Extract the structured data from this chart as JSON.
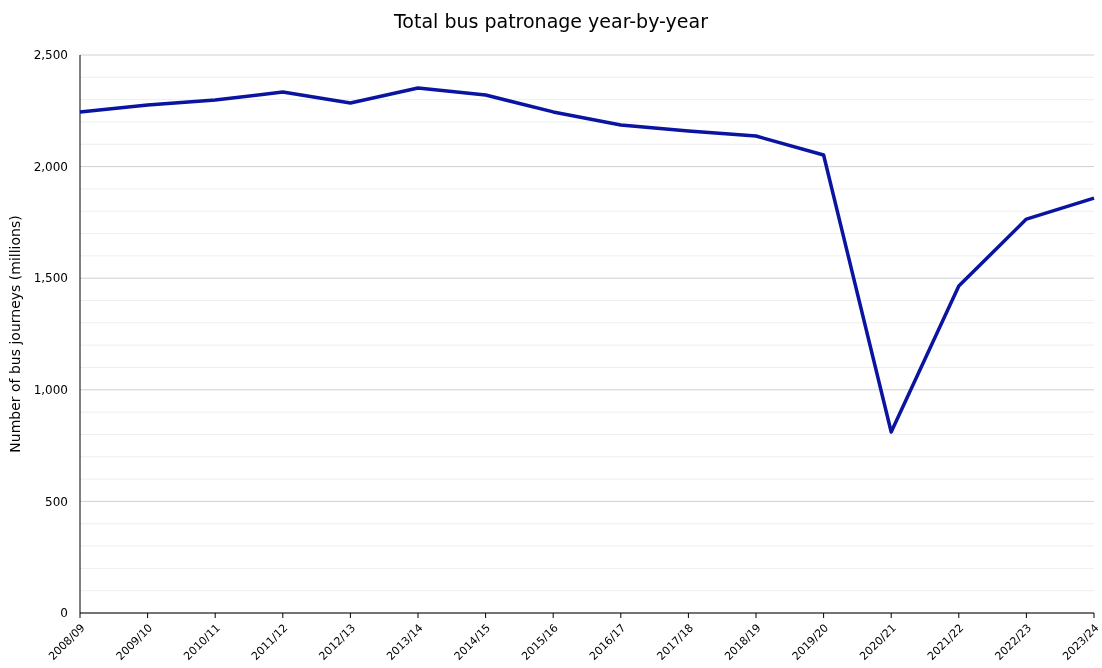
{
  "chart_data": {
    "type": "line",
    "title": "Total bus patronage year-by-year",
    "ylabel": "Number of bus journeys (millions)",
    "categories": [
      "2008/09",
      "2009/10",
      "2010/11",
      "2011/12",
      "2012/13",
      "2013/14",
      "2014/15",
      "2015/16",
      "2016/17",
      "2017/18",
      "2018/19",
      "2019/20",
      "2020/21",
      "2021/22",
      "2022/23",
      "2023/24"
    ],
    "series": [
      {
        "color": "#0a14a0",
        "values": [
          2245,
          2276,
          2298,
          2334,
          2285,
          2352,
          2321,
          2245,
          2186,
          2159,
          2137,
          2052,
          811,
          1465,
          1765,
          1859
        ]
      }
    ],
    "ylim": [
      0,
      2500
    ],
    "yticks": [
      "0",
      {
        "value": 100,
        "label": null
      },
      {
        "value": 200,
        "label": null
      },
      {
        "value": 300,
        "label": null
      },
      {
        "value": 400,
        "label": null
      },
      {
        "value": 500,
        "label": "500"
      },
      {
        "value": 600,
        "label": null
      },
      {
        "value": 700,
        "label": null
      },
      {
        "value": 800,
        "label": null
      },
      {
        "value": 900,
        "label": null
      },
      {
        "value": 1000,
        "label": "1,000"
      },
      {
        "value": 1100,
        "label": null
      },
      {
        "value": 1200,
        "label": null
      },
      {
        "value": 1300,
        "label": null
      },
      {
        "value": 1400,
        "label": null
      },
      {
        "value": 1500,
        "label": "1,500"
      },
      {
        "value": 1600,
        "label": null
      },
      {
        "value": 1700,
        "label": null
      },
      {
        "value": 1800,
        "label": null
      },
      {
        "value": 1900,
        "label": null
      },
      {
        "value": 2000,
        "label": "2,000"
      },
      {
        "value": 2100,
        "label": null
      },
      {
        "value": 2200,
        "label": null
      },
      {
        "value": 2300,
        "label": null
      },
      {
        "value": 2400,
        "label": null
      },
      {
        "value": 2500,
        "label": "2,500"
      }
    ],
    "grid": "y",
    "marker": "none",
    "line_style": "solid"
  }
}
